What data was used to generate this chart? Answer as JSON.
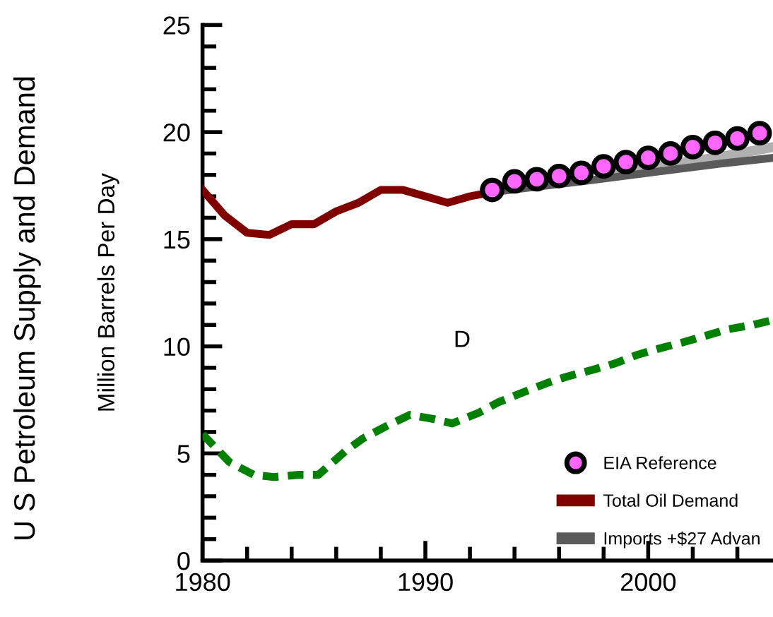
{
  "chart_data": {
    "type": "line",
    "title": "U S Petroleum Supply and Demand",
    "ylabel": "Million Barrels Per Day",
    "xlim": [
      1980,
      2005.6
    ],
    "ylim": [
      0,
      25
    ],
    "xticks": [
      1980,
      {
        "value": 1982,
        "label": null
      },
      {
        "value": 1984,
        "label": null
      },
      {
        "value": 1986,
        "label": null
      },
      {
        "value": 1988,
        "label": null
      },
      1990,
      {
        "value": 1992,
        "label": null
      },
      {
        "value": 1994,
        "label": null
      },
      {
        "value": 1996,
        "label": null
      },
      {
        "value": 1998,
        "label": null
      },
      2000,
      {
        "value": 2002,
        "label": null
      },
      {
        "value": 2004,
        "label": null
      }
    ],
    "yticks": [
      0,
      {
        "value": 1,
        "label": null
      },
      {
        "value": 2,
        "label": null
      },
      {
        "value": 3,
        "label": null
      },
      {
        "value": 4,
        "label": null
      },
      5,
      {
        "value": 6,
        "label": null
      },
      {
        "value": 7,
        "label": null
      },
      {
        "value": 8,
        "label": null
      },
      {
        "value": 9,
        "label": null
      },
      10,
      {
        "value": 11,
        "label": null
      },
      {
        "value": 12,
        "label": null
      },
      {
        "value": 13,
        "label": null
      },
      {
        "value": 14,
        "label": null
      },
      15,
      {
        "value": 16,
        "label": null
      },
      {
        "value": 17,
        "label": null
      },
      {
        "value": 18,
        "label": null
      },
      {
        "value": 19,
        "label": null
      },
      20,
      {
        "value": 21,
        "label": null
      },
      {
        "value": 22,
        "label": null
      },
      {
        "value": 23,
        "label": null
      },
      {
        "value": 24,
        "label": null
      },
      25
    ],
    "annotations": [
      "D"
    ],
    "grid": false,
    "legend": "bottom right",
    "series": [
      {
        "color": "#b0b0b0",
        "marker": "none",
        "line_style": "solid",
        "x": [
          1998,
          2001,
          2003,
          2005.6
        ],
        "values": [
          17.95,
          18.5,
          18.8,
          19.3
        ]
      },
      {
        "name": "Imports +$27 Advan",
        "color": "#5a5a5a",
        "marker": "none",
        "line_style": "solid",
        "x": [
          1993,
          1997,
          2000,
          2003,
          2005.6
        ],
        "values": [
          17.2,
          17.7,
          18.1,
          18.5,
          18.8
        ]
      },
      {
        "name": "Total Oil Demand",
        "color": "#800000",
        "marker": "none",
        "line_style": "solid",
        "x": [
          1980,
          1981,
          1982,
          1983,
          1984,
          1985,
          1986,
          1987,
          1988,
          1989,
          1990,
          1991,
          1992,
          1993
        ],
        "values": [
          17.3,
          16.1,
          15.3,
          15.2,
          15.7,
          15.7,
          16.3,
          16.7,
          17.3,
          17.3,
          17.0,
          16.7,
          17.0,
          17.2
        ]
      },
      {
        "name": "EIA Reference",
        "type": "scatter",
        "color": "#ff66ff",
        "marker": "circle",
        "x": [
          1993,
          1994,
          1995,
          1996,
          1997,
          1998,
          1999,
          2000,
          2001,
          2002,
          2003,
          2004,
          2005
        ],
        "values": [
          17.3,
          17.7,
          17.8,
          17.95,
          18.1,
          18.4,
          18.6,
          18.8,
          19.0,
          19.3,
          19.5,
          19.7,
          19.95
        ]
      },
      {
        "color": "#008000",
        "marker": "none",
        "line_style": "dashed",
        "x": [
          1980,
          1981.2,
          1982.3,
          1983.2,
          1984.3,
          1985.2,
          1986.4,
          1987.2,
          1988.3,
          1989.3,
          1990.4,
          1991.2,
          1992.4,
          1993.3,
          1994.5,
          1995.5,
          1996.4,
          1997.5,
          1998.5,
          1999.5,
          2000.5,
          2001.6,
          2002.6,
          2003.6,
          2004.7,
          2005.5
        ],
        "values": [
          5.9,
          4.6,
          4.0,
          3.9,
          4.0,
          4.0,
          5.1,
          5.7,
          6.3,
          6.8,
          6.6,
          6.4,
          6.9,
          7.4,
          7.9,
          8.3,
          8.6,
          8.9,
          9.2,
          9.6,
          9.9,
          10.2,
          10.5,
          10.8,
          11.0,
          11.2
        ]
      }
    ]
  }
}
